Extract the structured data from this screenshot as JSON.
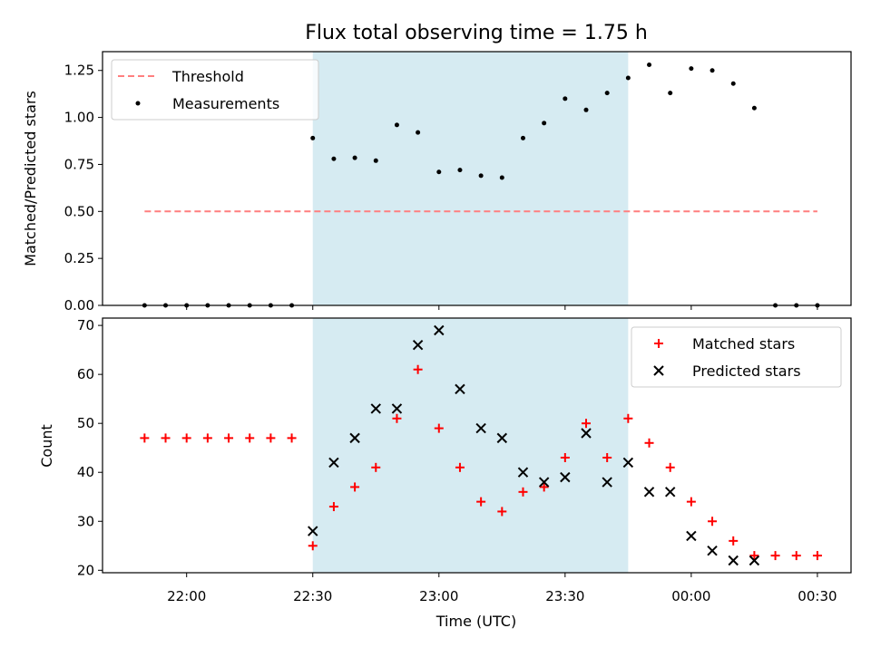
{
  "chart_data": [
    {
      "type": "scatter",
      "title": "Flux total observing time = 1.75 h",
      "xlabel": "",
      "ylabel": "Matched/Predicted stars",
      "ylim": [
        0,
        1.35
      ],
      "yticks": [
        0.0,
        0.25,
        0.5,
        0.75,
        1.0,
        1.25
      ],
      "ytick_labels": [
        "0.00",
        "0.25",
        "0.50",
        "0.75",
        "1.00",
        "1.25"
      ],
      "grid": false,
      "legend_position": "top-left",
      "observing_window": [
        "22:30",
        "23:45"
      ],
      "observing_window_color": "#add8e6",
      "series": [
        {
          "name": "Threshold",
          "kind": "dashed-line",
          "color": "#ff7f7f",
          "x": [
            "21:50",
            "00:30"
          ],
          "y": [
            0.5,
            0.5
          ]
        },
        {
          "name": "Measurements",
          "kind": "dots",
          "color": "#000000",
          "x": [
            "21:50",
            "21:55",
            "22:00",
            "22:05",
            "22:10",
            "22:15",
            "22:20",
            "22:25",
            "22:30",
            "22:35",
            "22:40",
            "22:45",
            "22:50",
            "22:55",
            "23:00",
            "23:05",
            "23:10",
            "23:15",
            "23:20",
            "23:25",
            "23:30",
            "23:35",
            "23:40",
            "23:45",
            "23:50",
            "23:55",
            "00:00",
            "00:05",
            "00:10",
            "00:15",
            "00:20",
            "00:25",
            "00:30"
          ],
          "y": [
            0,
            0,
            0,
            0,
            0,
            0,
            0,
            0,
            0.89,
            0.78,
            0.785,
            0.77,
            0.96,
            0.92,
            0.71,
            0.72,
            0.69,
            0.68,
            0.89,
            0.97,
            1.1,
            1.04,
            1.13,
            1.21,
            1.28,
            1.13,
            1.26,
            1.25,
            1.18,
            1.05,
            0,
            0,
            0
          ]
        }
      ]
    },
    {
      "type": "scatter",
      "title": "",
      "xlabel": "Time (UTC)",
      "ylabel": "Count",
      "xlim": [
        "21:40",
        "00:38"
      ],
      "xticks": [
        "22:00",
        "22:30",
        "23:00",
        "23:30",
        "00:00",
        "00:30"
      ],
      "ylim": [
        19.5,
        71.5
      ],
      "yticks": [
        20,
        30,
        40,
        50,
        60,
        70
      ],
      "ytick_labels": [
        "20",
        "30",
        "40",
        "50",
        "60",
        "70"
      ],
      "grid": false,
      "legend_position": "top-right",
      "series": [
        {
          "name": "Matched stars",
          "marker": "plus",
          "color": "#ff0000",
          "x": [
            "21:50",
            "21:55",
            "22:00",
            "22:05",
            "22:10",
            "22:15",
            "22:20",
            "22:25",
            "22:30",
            "22:35",
            "22:40",
            "22:45",
            "22:50",
            "22:55",
            "23:00",
            "23:05",
            "23:10",
            "23:15",
            "23:20",
            "23:25",
            "23:30",
            "23:35",
            "23:40",
            "23:45",
            "23:50",
            "23:55",
            "00:00",
            "00:05",
            "00:10",
            "00:15",
            "00:20",
            "00:25",
            "00:30"
          ],
          "y": [
            47,
            47,
            47,
            47,
            47,
            47,
            47,
            47,
            25,
            33,
            37,
            41,
            51,
            61,
            49,
            41,
            34,
            32,
            36,
            37,
            43,
            50,
            43,
            51,
            46,
            41,
            34,
            30,
            26,
            23,
            23,
            23,
            23
          ]
        },
        {
          "name": "Predicted stars",
          "marker": "x",
          "color": "#000000",
          "x": [
            "22:30",
            "22:35",
            "22:40",
            "22:45",
            "22:50",
            "22:55",
            "23:00",
            "23:05",
            "23:10",
            "23:15",
            "23:20",
            "23:25",
            "23:30",
            "23:35",
            "23:40",
            "23:45",
            "23:50",
            "23:55",
            "00:00",
            "00:05",
            "00:10",
            "00:15"
          ],
          "y": [
            28,
            42,
            47,
            53,
            53,
            66,
            69,
            57,
            49,
            47,
            40,
            38,
            39,
            48,
            38,
            42,
            36,
            36,
            27,
            24,
            22,
            22
          ]
        }
      ]
    }
  ]
}
